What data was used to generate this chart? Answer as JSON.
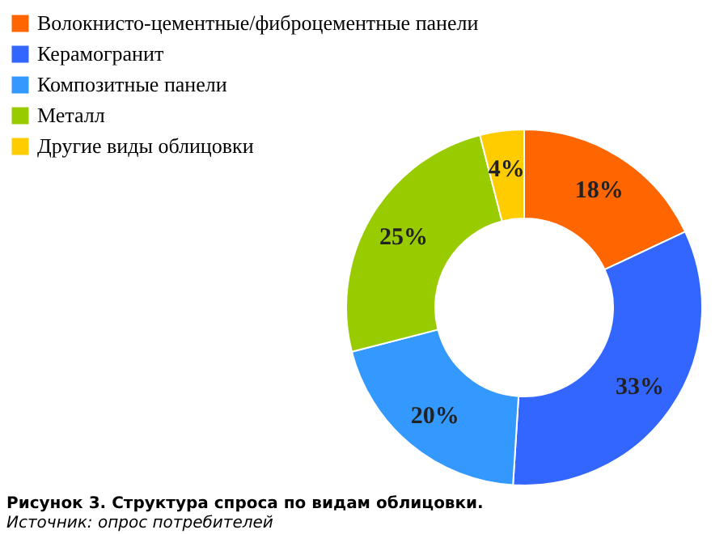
{
  "chart_data": {
    "type": "donut",
    "title": "Рисунок 3. Структура спроса по видам облицовки.",
    "annotations": [
      "Источник: опрос потребителей"
    ],
    "categories": [
      "Волокнисто-цементные/фиброцементные панели",
      "Керамогранит",
      "Композитные панели",
      "Металл",
      "Другие виды облицовки"
    ],
    "values": [
      18,
      33,
      20,
      25,
      4
    ],
    "value_labels": [
      "18%",
      "33%",
      "20%",
      "25%",
      "4%"
    ],
    "colors": [
      "#ff6600",
      "#3366ff",
      "#3399ff",
      "#99cc00",
      "#ffcc00"
    ],
    "legend": "top left"
  }
}
